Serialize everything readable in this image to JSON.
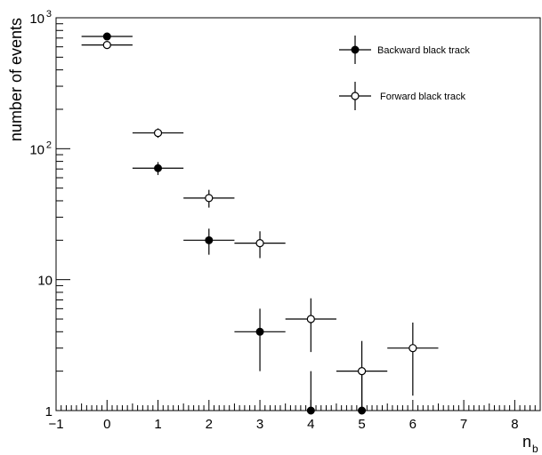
{
  "chart_data": {
    "type": "scatter",
    "title": "",
    "xlabel_main": "n",
    "xlabel_sub": "b",
    "ylabel": "number of events",
    "xlim": [
      -1,
      8.5
    ],
    "ylim": [
      1,
      1000
    ],
    "y_scale": "log",
    "grid": false,
    "legend_position": "top-right",
    "x_ticks": [
      {
        "value": -1,
        "label": "−1"
      },
      {
        "value": 0,
        "label": "0"
      },
      {
        "value": 1,
        "label": "1"
      },
      {
        "value": 2,
        "label": "2"
      },
      {
        "value": 3,
        "label": "3"
      },
      {
        "value": 4,
        "label": "4"
      },
      {
        "value": 5,
        "label": "5"
      },
      {
        "value": 6,
        "label": "6"
      },
      {
        "value": 7,
        "label": "7"
      },
      {
        "value": 8,
        "label": "8"
      }
    ],
    "y_ticks": [
      {
        "value": 1,
        "label": "1",
        "sup": ""
      },
      {
        "value": 10,
        "label": "10",
        "sup": ""
      },
      {
        "value": 100,
        "label": "10",
        "sup": "2"
      },
      {
        "value": 1000,
        "label": "10",
        "sup": "3"
      }
    ],
    "series": [
      {
        "name": "Backward black track",
        "marker": "filled-circle",
        "color": "#000000",
        "points": [
          {
            "x": 0,
            "y": 720,
            "xerr": 0.5,
            "ylow": 690,
            "yhigh": 750
          },
          {
            "x": 1,
            "y": 71,
            "xerr": 0.5,
            "ylow": 63,
            "yhigh": 79
          },
          {
            "x": 2,
            "y": 20,
            "xerr": 0.5,
            "ylow": 15.5,
            "yhigh": 24.5
          },
          {
            "x": 3,
            "y": 4,
            "xerr": 0.5,
            "ylow": 2,
            "yhigh": 6
          },
          {
            "x": 4,
            "y": 1,
            "xerr": 0,
            "ylow": 1,
            "yhigh": 2
          },
          {
            "x": 5,
            "y": 1,
            "xerr": 0,
            "ylow": 1,
            "yhigh": 2
          }
        ]
      },
      {
        "name": "Forward black track",
        "marker": "open-circle",
        "color": "#000000",
        "points": [
          {
            "x": 0,
            "y": 620,
            "xerr": 0.5,
            "ylow": 595,
            "yhigh": 645
          },
          {
            "x": 1,
            "y": 132,
            "xerr": 0.5,
            "ylow": 121,
            "yhigh": 143
          },
          {
            "x": 2,
            "y": 42,
            "xerr": 0.5,
            "ylow": 35.5,
            "yhigh": 48.5
          },
          {
            "x": 3,
            "y": 19,
            "xerr": 0.5,
            "ylow": 14.6,
            "yhigh": 23.4
          },
          {
            "x": 4,
            "y": 5,
            "xerr": 0.5,
            "ylow": 2.8,
            "yhigh": 7.2
          },
          {
            "x": 5,
            "y": 2,
            "xerr": 0.5,
            "ylow": 1,
            "yhigh": 3.4
          },
          {
            "x": 6,
            "y": 3,
            "xerr": 0.5,
            "ylow": 1.3,
            "yhigh": 4.7
          }
        ]
      }
    ]
  }
}
